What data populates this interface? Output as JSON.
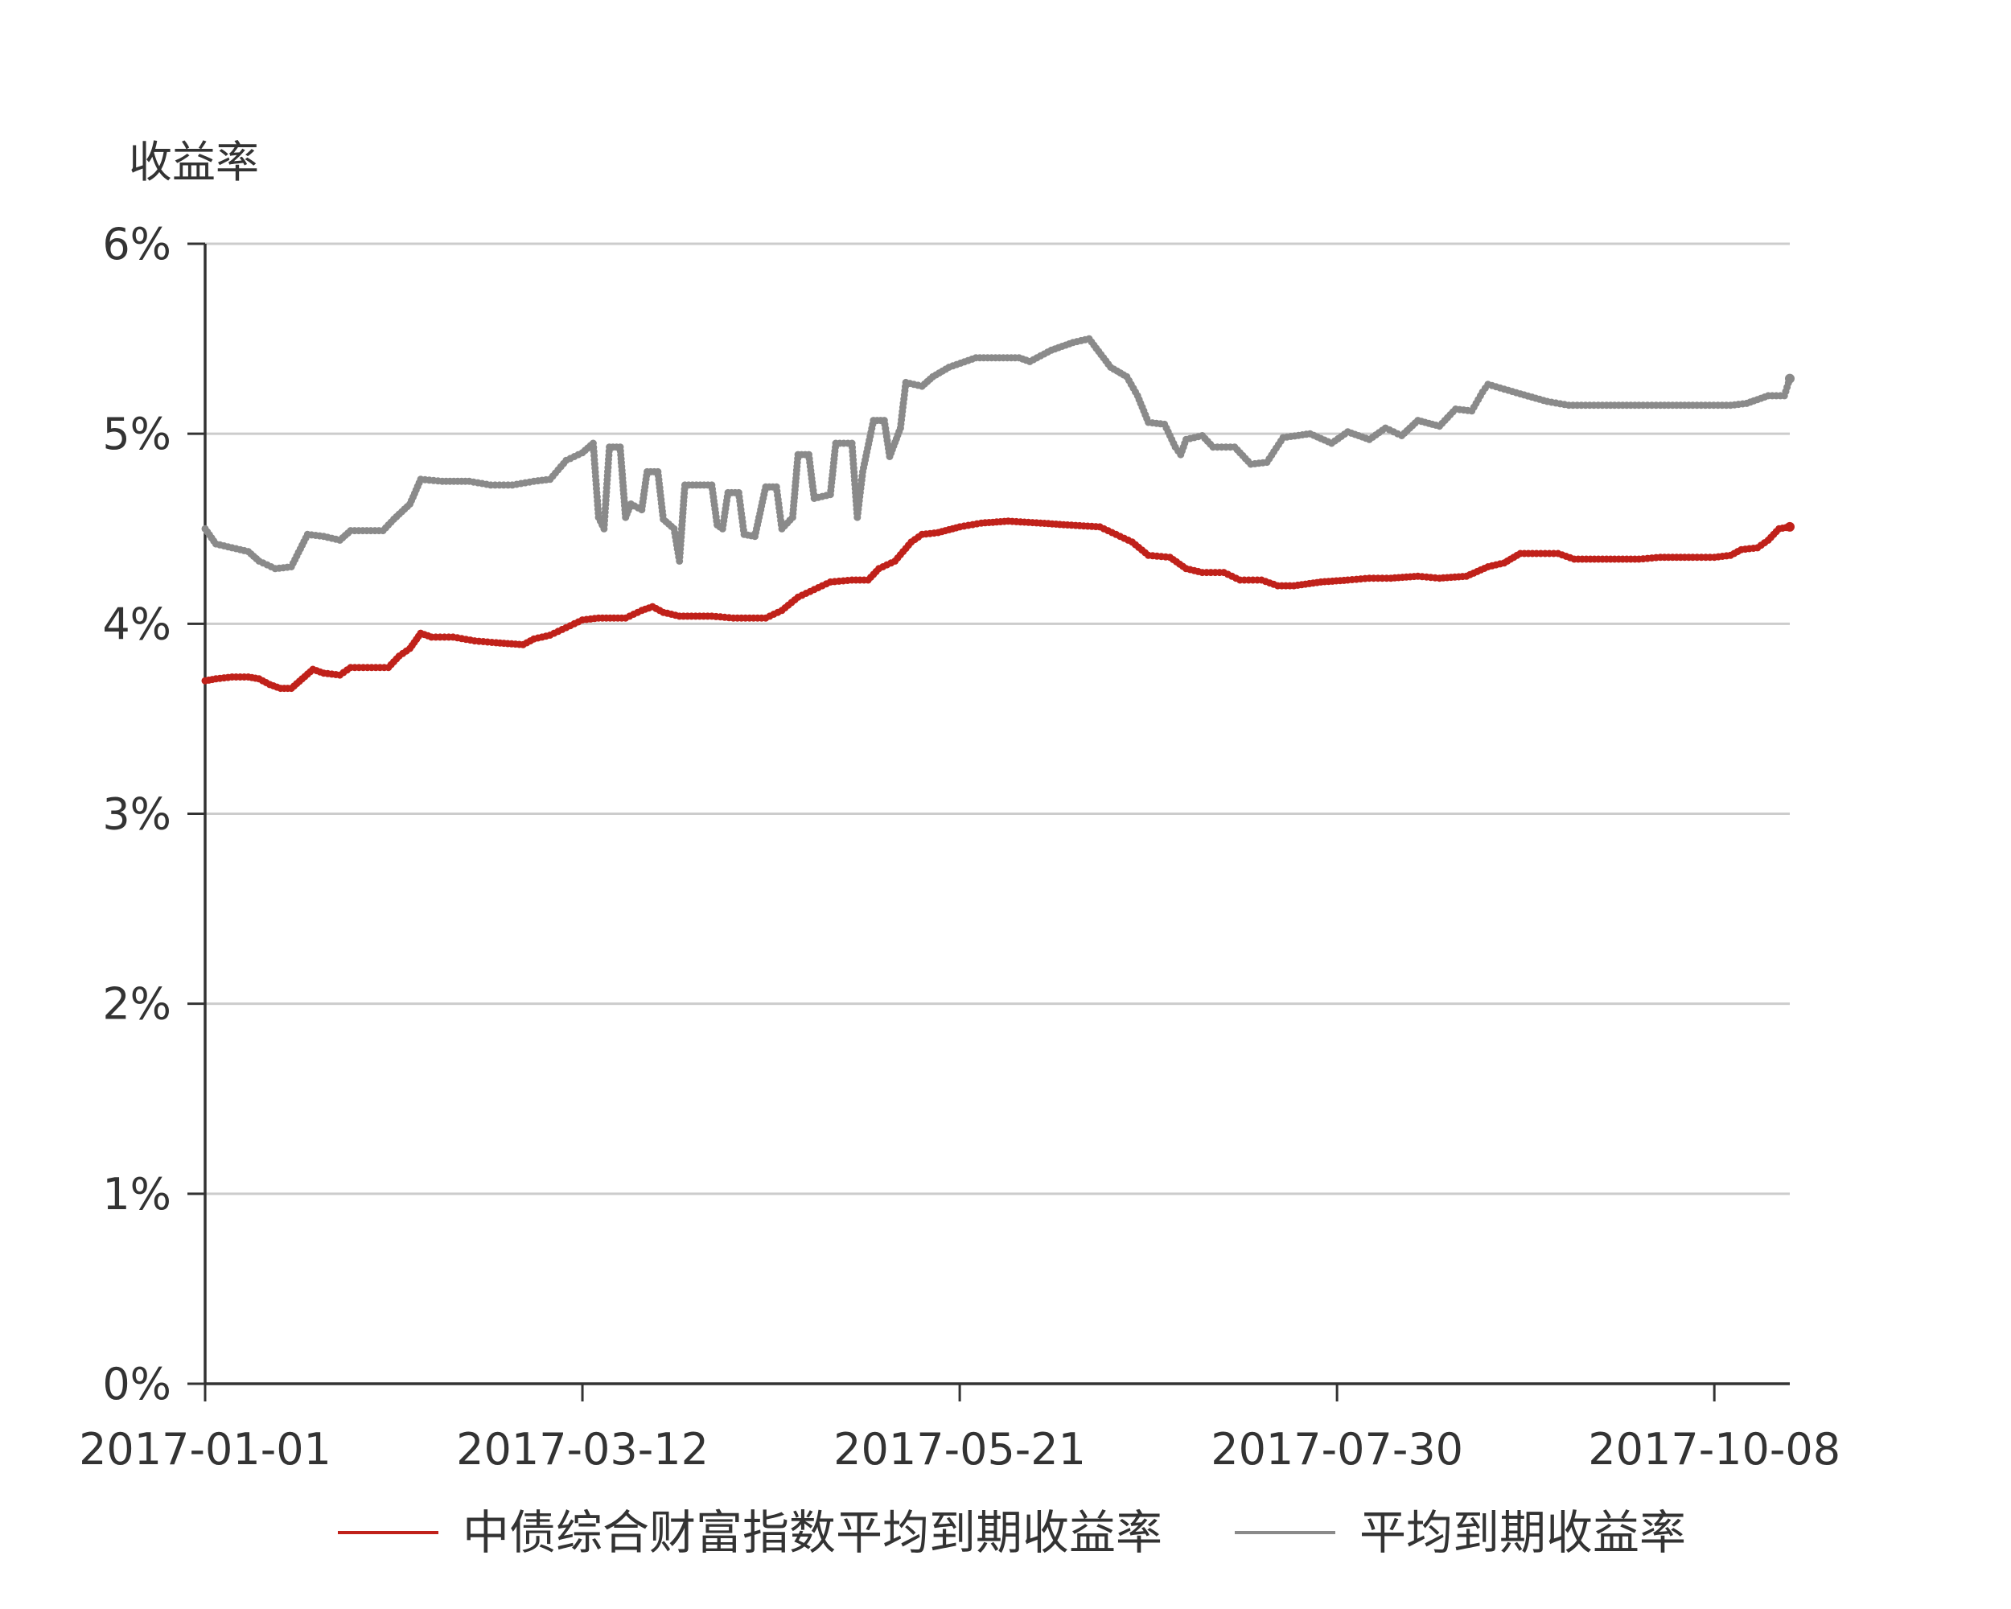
{
  "chart_data": {
    "type": "line",
    "ylabel": "收益率",
    "ylim": [
      0,
      6
    ],
    "yticks": [
      "0%",
      "1%",
      "2%",
      "3%",
      "4%",
      "5%",
      "6%"
    ],
    "xlim": [
      "2017-01-01",
      "2017-10-22"
    ],
    "xticks": [
      "2017-01-01",
      "2017-03-12",
      "2017-05-21",
      "2017-07-30",
      "2017-10-08"
    ],
    "grid": true,
    "legend": "bottom",
    "colors": {
      "red": "#c0211a",
      "gray": "#8a8a8a"
    },
    "series": [
      {
        "name": "中债综合财富指数平均到期收益率",
        "color": "#c0211a",
        "points": [
          [
            "2017-01-01",
            3.7
          ],
          [
            "2017-01-03",
            3.71
          ],
          [
            "2017-01-06",
            3.72
          ],
          [
            "2017-01-09",
            3.72
          ],
          [
            "2017-01-11",
            3.71
          ],
          [
            "2017-01-13",
            3.68
          ],
          [
            "2017-01-15",
            3.66
          ],
          [
            "2017-01-17",
            3.66
          ],
          [
            "2017-01-19",
            3.71
          ],
          [
            "2017-01-21",
            3.76
          ],
          [
            "2017-01-23",
            3.74
          ],
          [
            "2017-01-26",
            3.73
          ],
          [
            "2017-01-28",
            3.77
          ],
          [
            "2017-02-04",
            3.77
          ],
          [
            "2017-02-06",
            3.83
          ],
          [
            "2017-02-08",
            3.87
          ],
          [
            "2017-02-10",
            3.95
          ],
          [
            "2017-02-12",
            3.93
          ],
          [
            "2017-02-16",
            3.93
          ],
          [
            "2017-02-20",
            3.91
          ],
          [
            "2017-02-24",
            3.9
          ],
          [
            "2017-03-01",
            3.89
          ],
          [
            "2017-03-03",
            3.92
          ],
          [
            "2017-03-06",
            3.94
          ],
          [
            "2017-03-09",
            3.98
          ],
          [
            "2017-03-12",
            4.02
          ],
          [
            "2017-03-15",
            4.03
          ],
          [
            "2017-03-20",
            4.03
          ],
          [
            "2017-03-23",
            4.07
          ],
          [
            "2017-03-25",
            4.09
          ],
          [
            "2017-03-27",
            4.06
          ],
          [
            "2017-03-30",
            4.04
          ],
          [
            "2017-04-05",
            4.04
          ],
          [
            "2017-04-09",
            4.03
          ],
          [
            "2017-04-15",
            4.03
          ],
          [
            "2017-04-18",
            4.07
          ],
          [
            "2017-04-21",
            4.14
          ],
          [
            "2017-04-24",
            4.18
          ],
          [
            "2017-04-27",
            4.22
          ],
          [
            "2017-05-01",
            4.23
          ],
          [
            "2017-05-04",
            4.23
          ],
          [
            "2017-05-06",
            4.29
          ],
          [
            "2017-05-09",
            4.33
          ],
          [
            "2017-05-12",
            4.43
          ],
          [
            "2017-05-14",
            4.47
          ],
          [
            "2017-05-17",
            4.48
          ],
          [
            "2017-05-21",
            4.51
          ],
          [
            "2017-05-25",
            4.53
          ],
          [
            "2017-05-30",
            4.54
          ],
          [
            "2017-06-05",
            4.53
          ],
          [
            "2017-06-10",
            4.52
          ],
          [
            "2017-06-16",
            4.51
          ],
          [
            "2017-06-19",
            4.47
          ],
          [
            "2017-06-22",
            4.43
          ],
          [
            "2017-06-25",
            4.36
          ],
          [
            "2017-06-29",
            4.35
          ],
          [
            "2017-07-02",
            4.29
          ],
          [
            "2017-07-05",
            4.27
          ],
          [
            "2017-07-09",
            4.27
          ],
          [
            "2017-07-12",
            4.23
          ],
          [
            "2017-07-16",
            4.23
          ],
          [
            "2017-07-19",
            4.2
          ],
          [
            "2017-07-22",
            4.2
          ],
          [
            "2017-07-27",
            4.22
          ],
          [
            "2017-08-01",
            4.23
          ],
          [
            "2017-08-05",
            4.24
          ],
          [
            "2017-08-09",
            4.24
          ],
          [
            "2017-08-14",
            4.25
          ],
          [
            "2017-08-18",
            4.24
          ],
          [
            "2017-08-23",
            4.25
          ],
          [
            "2017-08-27",
            4.3
          ],
          [
            "2017-08-30",
            4.32
          ],
          [
            "2017-09-02",
            4.37
          ],
          [
            "2017-09-05",
            4.37
          ],
          [
            "2017-09-09",
            4.37
          ],
          [
            "2017-09-12",
            4.34
          ],
          [
            "2017-09-18",
            4.34
          ],
          [
            "2017-09-24",
            4.34
          ],
          [
            "2017-09-28",
            4.35
          ],
          [
            "2017-10-04",
            4.35
          ],
          [
            "2017-10-08",
            4.35
          ],
          [
            "2017-10-11",
            4.36
          ],
          [
            "2017-10-13",
            4.39
          ],
          [
            "2017-10-16",
            4.4
          ],
          [
            "2017-10-18",
            4.44
          ],
          [
            "2017-10-20",
            4.5
          ],
          [
            "2017-10-22",
            4.51
          ]
        ]
      },
      {
        "name": "平均到期收益率",
        "color": "#8a8a8a",
        "points": [
          [
            "2017-01-01",
            4.5
          ],
          [
            "2017-01-03",
            4.42
          ],
          [
            "2017-01-06",
            4.4
          ],
          [
            "2017-01-09",
            4.38
          ],
          [
            "2017-01-11",
            4.33
          ],
          [
            "2017-01-14",
            4.29
          ],
          [
            "2017-01-17",
            4.3
          ],
          [
            "2017-01-20",
            4.47
          ],
          [
            "2017-01-23",
            4.46
          ],
          [
            "2017-01-26",
            4.44
          ],
          [
            "2017-01-28",
            4.49
          ],
          [
            "2017-02-03",
            4.49
          ],
          [
            "2017-02-05",
            4.55
          ],
          [
            "2017-02-08",
            4.63
          ],
          [
            "2017-02-10",
            4.76
          ],
          [
            "2017-02-14",
            4.75
          ],
          [
            "2017-02-19",
            4.75
          ],
          [
            "2017-02-23",
            4.73
          ],
          [
            "2017-02-27",
            4.73
          ],
          [
            "2017-03-03",
            4.75
          ],
          [
            "2017-03-06",
            4.76
          ],
          [
            "2017-03-09",
            4.86
          ],
          [
            "2017-03-12",
            4.9
          ],
          [
            "2017-03-14",
            4.95
          ],
          [
            "2017-03-15",
            4.56
          ],
          [
            "2017-03-16",
            4.5
          ],
          [
            "2017-03-17",
            4.93
          ],
          [
            "2017-03-19",
            4.93
          ],
          [
            "2017-03-20",
            4.56
          ],
          [
            "2017-03-21",
            4.63
          ],
          [
            "2017-03-23",
            4.6
          ],
          [
            "2017-03-24",
            4.8
          ],
          [
            "2017-03-26",
            4.8
          ],
          [
            "2017-03-27",
            4.55
          ],
          [
            "2017-03-29",
            4.5
          ],
          [
            "2017-03-30",
            4.33
          ],
          [
            "2017-03-31",
            4.73
          ],
          [
            "2017-04-05",
            4.73
          ],
          [
            "2017-04-06",
            4.52
          ],
          [
            "2017-04-07",
            4.5
          ],
          [
            "2017-04-08",
            4.69
          ],
          [
            "2017-04-10",
            4.69
          ],
          [
            "2017-04-11",
            4.47
          ],
          [
            "2017-04-13",
            4.46
          ],
          [
            "2017-04-15",
            4.72
          ],
          [
            "2017-04-17",
            4.72
          ],
          [
            "2017-04-18",
            4.5
          ],
          [
            "2017-04-20",
            4.56
          ],
          [
            "2017-04-21",
            4.89
          ],
          [
            "2017-04-23",
            4.89
          ],
          [
            "2017-04-24",
            4.66
          ],
          [
            "2017-04-27",
            4.68
          ],
          [
            "2017-04-28",
            4.95
          ],
          [
            "2017-05-01",
            4.95
          ],
          [
            "2017-05-02",
            4.56
          ],
          [
            "2017-05-03",
            4.8
          ],
          [
            "2017-05-05",
            5.07
          ],
          [
            "2017-05-07",
            5.07
          ],
          [
            "2017-05-08",
            4.88
          ],
          [
            "2017-05-10",
            5.03
          ],
          [
            "2017-05-11",
            5.27
          ],
          [
            "2017-05-14",
            5.25
          ],
          [
            "2017-05-16",
            5.3
          ],
          [
            "2017-05-19",
            5.35
          ],
          [
            "2017-05-24",
            5.4
          ],
          [
            "2017-06-01",
            5.4
          ],
          [
            "2017-06-03",
            5.38
          ],
          [
            "2017-06-07",
            5.44
          ],
          [
            "2017-06-11",
            5.48
          ],
          [
            "2017-06-14",
            5.5
          ],
          [
            "2017-06-18",
            5.35
          ],
          [
            "2017-06-21",
            5.3
          ],
          [
            "2017-06-23",
            5.2
          ],
          [
            "2017-06-25",
            5.06
          ],
          [
            "2017-06-28",
            5.05
          ],
          [
            "2017-06-30",
            4.93
          ],
          [
            "2017-07-01",
            4.89
          ],
          [
            "2017-07-02",
            4.97
          ],
          [
            "2017-07-05",
            4.99
          ],
          [
            "2017-07-07",
            4.93
          ],
          [
            "2017-07-11",
            4.93
          ],
          [
            "2017-07-14",
            4.84
          ],
          [
            "2017-07-17",
            4.85
          ],
          [
            "2017-07-20",
            4.98
          ],
          [
            "2017-07-25",
            5.0
          ],
          [
            "2017-07-29",
            4.95
          ],
          [
            "2017-08-01",
            5.01
          ],
          [
            "2017-08-05",
            4.97
          ],
          [
            "2017-08-08",
            5.03
          ],
          [
            "2017-08-11",
            4.99
          ],
          [
            "2017-08-14",
            5.07
          ],
          [
            "2017-08-18",
            5.04
          ],
          [
            "2017-08-21",
            5.13
          ],
          [
            "2017-08-24",
            5.12
          ],
          [
            "2017-08-26",
            5.22
          ],
          [
            "2017-08-27",
            5.26
          ],
          [
            "2017-09-02",
            5.21
          ],
          [
            "2017-09-07",
            5.17
          ],
          [
            "2017-09-11",
            5.15
          ],
          [
            "2017-09-18",
            5.15
          ],
          [
            "2017-09-24",
            5.15
          ],
          [
            "2017-09-28",
            5.15
          ],
          [
            "2017-10-04",
            5.15
          ],
          [
            "2017-10-11",
            5.15
          ],
          [
            "2017-10-14",
            5.16
          ],
          [
            "2017-10-18",
            5.2
          ],
          [
            "2017-10-21",
            5.2
          ],
          [
            "2017-10-22",
            5.29
          ]
        ]
      }
    ]
  }
}
